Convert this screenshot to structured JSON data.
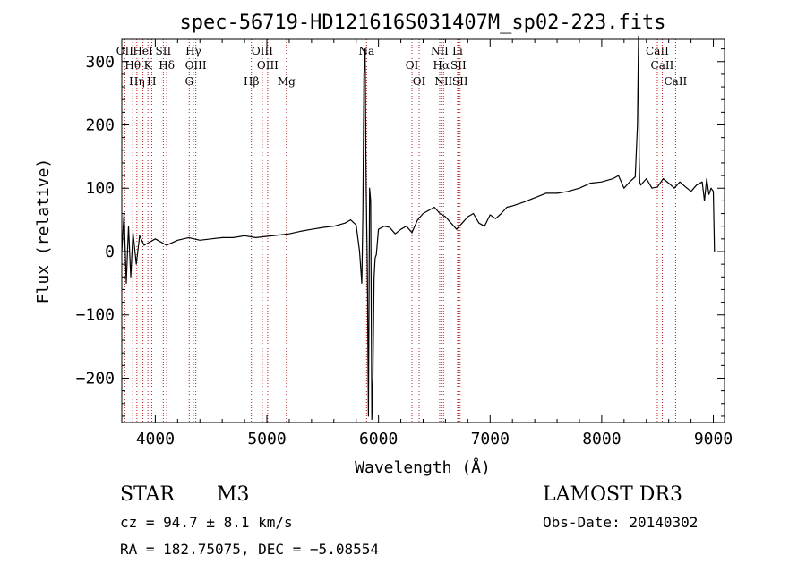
{
  "chart_data": {
    "type": "line",
    "title": "spec-56719-HD121616S031407M_sp02-223.fits",
    "xlabel": "Wavelength (Å)",
    "ylabel": "Flux (relative)",
    "xlim": [
      3700,
      9100
    ],
    "ylim": [
      -270,
      335
    ],
    "xticks": [
      4000,
      5000,
      6000,
      7000,
      8000,
      9000
    ],
    "yticks": [
      -200,
      -100,
      0,
      100,
      200,
      300
    ],
    "x_tick_labels": [
      "4000",
      "5000",
      "6000",
      "7000",
      "8000",
      "9000"
    ],
    "y_tick_labels": [
      "−200",
      "−100",
      "0",
      "100",
      "200",
      "300"
    ],
    "series": [
      {
        "name": "flux",
        "x": [
          3700,
          3720,
          3740,
          3760,
          3780,
          3800,
          3830,
          3860,
          3900,
          3950,
          4000,
          4100,
          4200,
          4300,
          4400,
          4500,
          4600,
          4700,
          4800,
          4900,
          5000,
          5100,
          5200,
          5300,
          5400,
          5500,
          5600,
          5700,
          5750,
          5800,
          5830,
          5850,
          5860,
          5870,
          5880,
          5890,
          5900,
          5910,
          5920,
          5930,
          5940,
          5950,
          5960,
          5970,
          5980,
          6000,
          6050,
          6100,
          6150,
          6200,
          6250,
          6300,
          6350,
          6400,
          6450,
          6500,
          6550,
          6600,
          6650,
          6700,
          6750,
          6800,
          6850,
          6900,
          6950,
          7000,
          7050,
          7100,
          7150,
          7200,
          7300,
          7400,
          7500,
          7600,
          7700,
          7800,
          7900,
          8000,
          8100,
          8150,
          8200,
          8250,
          8300,
          8320,
          8330,
          8335,
          8340,
          8350,
          8400,
          8450,
          8500,
          8550,
          8600,
          8650,
          8700,
          8750,
          8800,
          8850,
          8900,
          8920,
          8940,
          8960,
          8980,
          9000,
          9010
        ],
        "y": [
          0,
          60,
          -50,
          40,
          -40,
          30,
          -20,
          25,
          10,
          15,
          20,
          10,
          18,
          22,
          18,
          20,
          22,
          22,
          25,
          22,
          24,
          26,
          28,
          32,
          35,
          38,
          40,
          45,
          50,
          42,
          0,
          -50,
          60,
          280,
          320,
          100,
          -30,
          -260,
          100,
          80,
          -265,
          -200,
          -40,
          -10,
          -5,
          35,
          40,
          38,
          28,
          35,
          40,
          30,
          50,
          60,
          65,
          70,
          60,
          55,
          45,
          35,
          45,
          55,
          60,
          45,
          40,
          58,
          52,
          60,
          70,
          72,
          78,
          85,
          92,
          92,
          95,
          100,
          108,
          110,
          115,
          120,
          100,
          110,
          118,
          200,
          340,
          150,
          110,
          105,
          115,
          100,
          102,
          115,
          108,
          100,
          110,
          102,
          95,
          105,
          110,
          80,
          115,
          90,
          100,
          95,
          0
        ]
      }
    ],
    "spectral_lines": [
      {
        "label": "OII",
        "x": 3727
      },
      {
        "label": "Hθ",
        "x": 3798
      },
      {
        "label": "Hη",
        "x": 3835
      },
      {
        "label": "HeI",
        "x": 3889
      },
      {
        "label": "K",
        "x": 3934
      },
      {
        "label": "H",
        "x": 3968
      },
      {
        "label": "SII",
        "x": 4072
      },
      {
        "label": "Hδ",
        "x": 4102
      },
      {
        "label": "G",
        "x": 4304
      },
      {
        "label": "Hγ",
        "x": 4341
      },
      {
        "label": "OIII",
        "x": 4363
      },
      {
        "label": "Hβ",
        "x": 4861
      },
      {
        "label": "OIII",
        "x": 4959
      },
      {
        "label": "OIII",
        "x": 5007
      },
      {
        "label": "Mg",
        "x": 5175
      },
      {
        "label": "Na",
        "x": 5893
      },
      {
        "label": "OI",
        "x": 6300
      },
      {
        "label": "OI",
        "x": 6364
      },
      {
        "label": "NII",
        "x": 6548
      },
      {
        "label": "Hα",
        "x": 6563
      },
      {
        "label": "NII",
        "x": 6583
      },
      {
        "label": "Li",
        "x": 6708
      },
      {
        "label": "SII",
        "x": 6716
      },
      {
        "label": "SII",
        "x": 6731
      },
      {
        "label": "CaII",
        "x": 8498
      },
      {
        "label": "CaII",
        "x": 8542
      },
      {
        "label": "CaII",
        "x": 8662
      }
    ],
    "line_color": "#000000",
    "marker_color": "#b22222",
    "grid": false,
    "legend": "none"
  },
  "info": {
    "object_class": "STAR",
    "subclass": "M3",
    "survey": "LAMOST DR3",
    "cz": "cz = 94.7 ± 8.1 km/s",
    "obs_date": "Obs-Date: 20140302",
    "coords": "RA = 182.75075, DEC =  −5.08554"
  }
}
